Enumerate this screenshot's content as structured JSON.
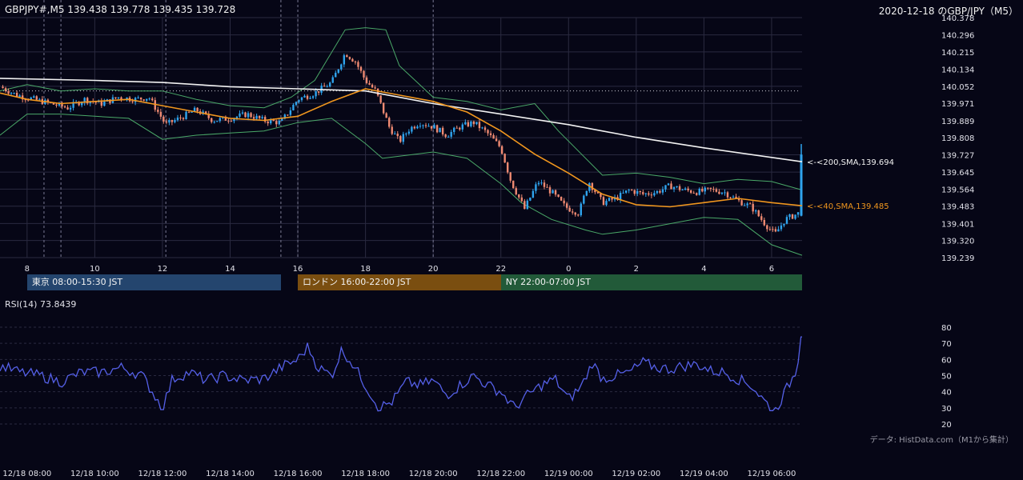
{
  "header": {
    "quote": "GBPJPY#,M5 139.438 139.778 139.435 139.728",
    "title": "2020-12-18 のGBP/JPY（M5）"
  },
  "sessions": [
    {
      "label": "東京 08:00-15:30 JST",
      "color": "#24456e"
    },
    {
      "label": "ロンドン 16:00-22:00 JST",
      "color": "#7a4e10"
    },
    {
      "label": "NY 22:00-07:00 JST",
      "color": "#225a39"
    }
  ],
  "credit": "データ: HistData.com（M1から集計）",
  "colors": {
    "up": "#2fa4ee",
    "down": "#ef8a72",
    "sma200": "#f2f2f2",
    "sma40": "#f0961e",
    "bands": "#4aa868",
    "rsi": "#5560e8",
    "grid": "#2a2a40"
  },
  "chart_data": [
    {
      "type": "candlestick",
      "name": "price",
      "y_ticks": [
        "140.378",
        "140.296",
        "140.215",
        "140.134",
        "140.052",
        "139.971",
        "139.889",
        "139.808",
        "139.727",
        "139.645",
        "139.564",
        "139.483",
        "139.401",
        "139.320",
        "139.239"
      ],
      "ylim": [
        139.239,
        140.378
      ],
      "x_ticks": [
        "8",
        "10",
        "12",
        "14",
        "16",
        "18",
        "20",
        "22",
        "0",
        "2",
        "4",
        "6"
      ],
      "x_range_hours": [
        7.2,
        30.9
      ],
      "hline": 140.03,
      "vlines_hours": [
        8.5,
        9.0,
        12.1,
        15.5,
        16.0,
        20.0
      ],
      "series": [
        {
          "name": "<200,SMA,139.694",
          "points": [
            [
              7.2,
              140.09
            ],
            [
              10,
              140.08
            ],
            [
              12,
              140.07
            ],
            [
              14,
              140.05
            ],
            [
              16,
              140.04
            ],
            [
              18,
              140.03
            ],
            [
              20,
              139.97
            ],
            [
              22,
              139.92
            ],
            [
              24,
              139.87
            ],
            [
              26,
              139.81
            ],
            [
              28,
              139.76
            ],
            [
              30.9,
              139.694
            ]
          ]
        },
        {
          "name": "<40,SMA,139.485",
          "points": [
            [
              7.2,
              140.02
            ],
            [
              8,
              139.99
            ],
            [
              9,
              139.97
            ],
            [
              10,
              139.98
            ],
            [
              11,
              139.99
            ],
            [
              12,
              139.96
            ],
            [
              13,
              139.93
            ],
            [
              14,
              139.9
            ],
            [
              15,
              139.89
            ],
            [
              16,
              139.91
            ],
            [
              17,
              139.98
            ],
            [
              18,
              140.04
            ],
            [
              19,
              140.01
            ],
            [
              20,
              139.98
            ],
            [
              21,
              139.93
            ],
            [
              22,
              139.84
            ],
            [
              23,
              139.73
            ],
            [
              24,
              139.64
            ],
            [
              25,
              139.54
            ],
            [
              26,
              139.49
            ],
            [
              27,
              139.48
            ],
            [
              28,
              139.5
            ],
            [
              29,
              139.52
            ],
            [
              30,
              139.5
            ],
            [
              30.9,
              139.485
            ]
          ]
        }
      ],
      "bands": {
        "upper": [
          [
            7.2,
            140.03
          ],
          [
            8,
            140.06
          ],
          [
            9,
            140.03
          ],
          [
            10,
            140.04
          ],
          [
            11,
            140.03
          ],
          [
            12,
            140.03
          ],
          [
            13,
            139.99
          ],
          [
            14,
            139.96
          ],
          [
            15,
            139.95
          ],
          [
            15.8,
            140.0
          ],
          [
            16.5,
            140.08
          ],
          [
            17.4,
            140.32
          ],
          [
            18,
            140.33
          ],
          [
            18.6,
            140.32
          ],
          [
            19,
            140.15
          ],
          [
            20,
            140.0
          ],
          [
            21,
            139.98
          ],
          [
            22,
            139.94
          ],
          [
            23,
            139.97
          ],
          [
            23.7,
            139.84
          ],
          [
            25,
            139.63
          ],
          [
            26,
            139.64
          ],
          [
            27,
            139.62
          ],
          [
            28,
            139.59
          ],
          [
            29,
            139.61
          ],
          [
            30,
            139.6
          ],
          [
            30.9,
            139.56
          ]
        ],
        "lower": [
          [
            7.2,
            139.82
          ],
          [
            8,
            139.92
          ],
          [
            9,
            139.92
          ],
          [
            10,
            139.91
          ],
          [
            11,
            139.9
          ],
          [
            12,
            139.8
          ],
          [
            13,
            139.82
          ],
          [
            14,
            139.83
          ],
          [
            15,
            139.84
          ],
          [
            16,
            139.88
          ],
          [
            17,
            139.9
          ],
          [
            18,
            139.78
          ],
          [
            18.5,
            139.71
          ],
          [
            19,
            139.72
          ],
          [
            20,
            139.74
          ],
          [
            21,
            139.71
          ],
          [
            22,
            139.59
          ],
          [
            22.6,
            139.5
          ],
          [
            23.5,
            139.42
          ],
          [
            24.5,
            139.37
          ],
          [
            25,
            139.35
          ],
          [
            26,
            139.37
          ],
          [
            27,
            139.4
          ],
          [
            28,
            139.43
          ],
          [
            29,
            139.42
          ],
          [
            30,
            139.3
          ],
          [
            30.9,
            139.25
          ]
        ]
      },
      "price_path": [
        [
          7.2,
          140.05
        ],
        [
          7.7,
          140.01
        ],
        [
          8.2,
          139.99
        ],
        [
          8.7,
          139.97
        ],
        [
          9.2,
          139.95
        ],
        [
          9.7,
          139.99
        ],
        [
          10.2,
          139.97
        ],
        [
          10.7,
          140.0
        ],
        [
          11.2,
          139.99
        ],
        [
          11.6,
          140.0
        ],
        [
          12.1,
          139.87
        ],
        [
          12.5,
          139.9
        ],
        [
          13,
          139.94
        ],
        [
          13.5,
          139.89
        ],
        [
          14,
          139.9
        ],
        [
          14.5,
          139.92
        ],
        [
          15,
          139.89
        ],
        [
          15.5,
          139.88
        ],
        [
          16,
          139.99
        ],
        [
          16.5,
          140.02
        ],
        [
          17,
          140.07
        ],
        [
          17.4,
          140.21
        ],
        [
          17.7,
          140.17
        ],
        [
          18,
          140.08
        ],
        [
          18.3,
          140.03
        ],
        [
          18.7,
          139.86
        ],
        [
          19,
          139.79
        ],
        [
          19.3,
          139.85
        ],
        [
          19.6,
          139.88
        ],
        [
          20,
          139.86
        ],
        [
          20.4,
          139.82
        ],
        [
          20.8,
          139.86
        ],
        [
          21.2,
          139.88
        ],
        [
          21.6,
          139.83
        ],
        [
          22,
          139.76
        ],
        [
          22.3,
          139.6
        ],
        [
          22.7,
          139.47
        ],
        [
          23.1,
          139.6
        ],
        [
          23.5,
          139.55
        ],
        [
          23.9,
          139.48
        ],
        [
          24.3,
          139.45
        ],
        [
          24.6,
          139.6
        ],
        [
          25,
          139.5
        ],
        [
          25.4,
          139.52
        ],
        [
          25.8,
          139.56
        ],
        [
          26.2,
          139.54
        ],
        [
          26.6,
          139.55
        ],
        [
          27,
          139.58
        ],
        [
          27.4,
          139.56
        ],
        [
          27.8,
          139.55
        ],
        [
          28.2,
          139.56
        ],
        [
          28.6,
          139.55
        ],
        [
          29,
          139.51
        ],
        [
          29.4,
          139.48
        ],
        [
          29.8,
          139.4
        ],
        [
          30.1,
          139.35
        ],
        [
          30.4,
          139.42
        ],
        [
          30.8,
          139.45
        ],
        [
          30.9,
          139.728
        ]
      ],
      "last_candle": {
        "open": 139.438,
        "high": 139.778,
        "low": 139.435,
        "close": 139.728
      }
    },
    {
      "type": "line",
      "name": "RSI",
      "title": "RSI(14) 73.8439",
      "y_ticks": [
        80,
        70,
        60,
        50,
        40,
        30,
        20
      ],
      "ylim": [
        20,
        80
      ],
      "x_ticks": [
        "12/18 08:00",
        "12/18 10:00",
        "12/18 12:00",
        "12/18 14:00",
        "12/18 16:00",
        "12/18 18:00",
        "12/18 20:00",
        "12/18 22:00",
        "12/19 00:00",
        "12/19 02:00",
        "12/19 04:00",
        "12/19 06:00"
      ],
      "values_path": [
        [
          7.2,
          56
        ],
        [
          7.8,
          52
        ],
        [
          8.4,
          50
        ],
        [
          9,
          46
        ],
        [
          9.6,
          52
        ],
        [
          10.2,
          52
        ],
        [
          10.8,
          55
        ],
        [
          11.4,
          50
        ],
        [
          12,
          30
        ],
        [
          12.3,
          48
        ],
        [
          12.8,
          52
        ],
        [
          13.3,
          47
        ],
        [
          13.8,
          50
        ],
        [
          14.4,
          47
        ],
        [
          15,
          48
        ],
        [
          15.5,
          55
        ],
        [
          16,
          60
        ],
        [
          16.3,
          68
        ],
        [
          16.6,
          55
        ],
        [
          17,
          50
        ],
        [
          17.3,
          66
        ],
        [
          17.6,
          58
        ],
        [
          18,
          44
        ],
        [
          18.4,
          30
        ],
        [
          18.8,
          34
        ],
        [
          19.2,
          46
        ],
        [
          19.6,
          44
        ],
        [
          20,
          47
        ],
        [
          20.4,
          38
        ],
        [
          20.8,
          44
        ],
        [
          21.2,
          50
        ],
        [
          21.6,
          44
        ],
        [
          22,
          40
        ],
        [
          22.4,
          30
        ],
        [
          22.8,
          38
        ],
        [
          23.2,
          44
        ],
        [
          23.6,
          48
        ],
        [
          24,
          35
        ],
        [
          24.4,
          44
        ],
        [
          24.7,
          58
        ],
        [
          25,
          48
        ],
        [
          25.4,
          50
        ],
        [
          25.8,
          52
        ],
        [
          26.2,
          58
        ],
        [
          26.6,
          55
        ],
        [
          27,
          54
        ],
        [
          27.4,
          56
        ],
        [
          27.8,
          57
        ],
        [
          28.2,
          53
        ],
        [
          28.6,
          52
        ],
        [
          29,
          48
        ],
        [
          29.4,
          44
        ],
        [
          29.8,
          34
        ],
        [
          30.1,
          28
        ],
        [
          30.4,
          40
        ],
        [
          30.7,
          52
        ],
        [
          30.9,
          74
        ]
      ]
    }
  ]
}
